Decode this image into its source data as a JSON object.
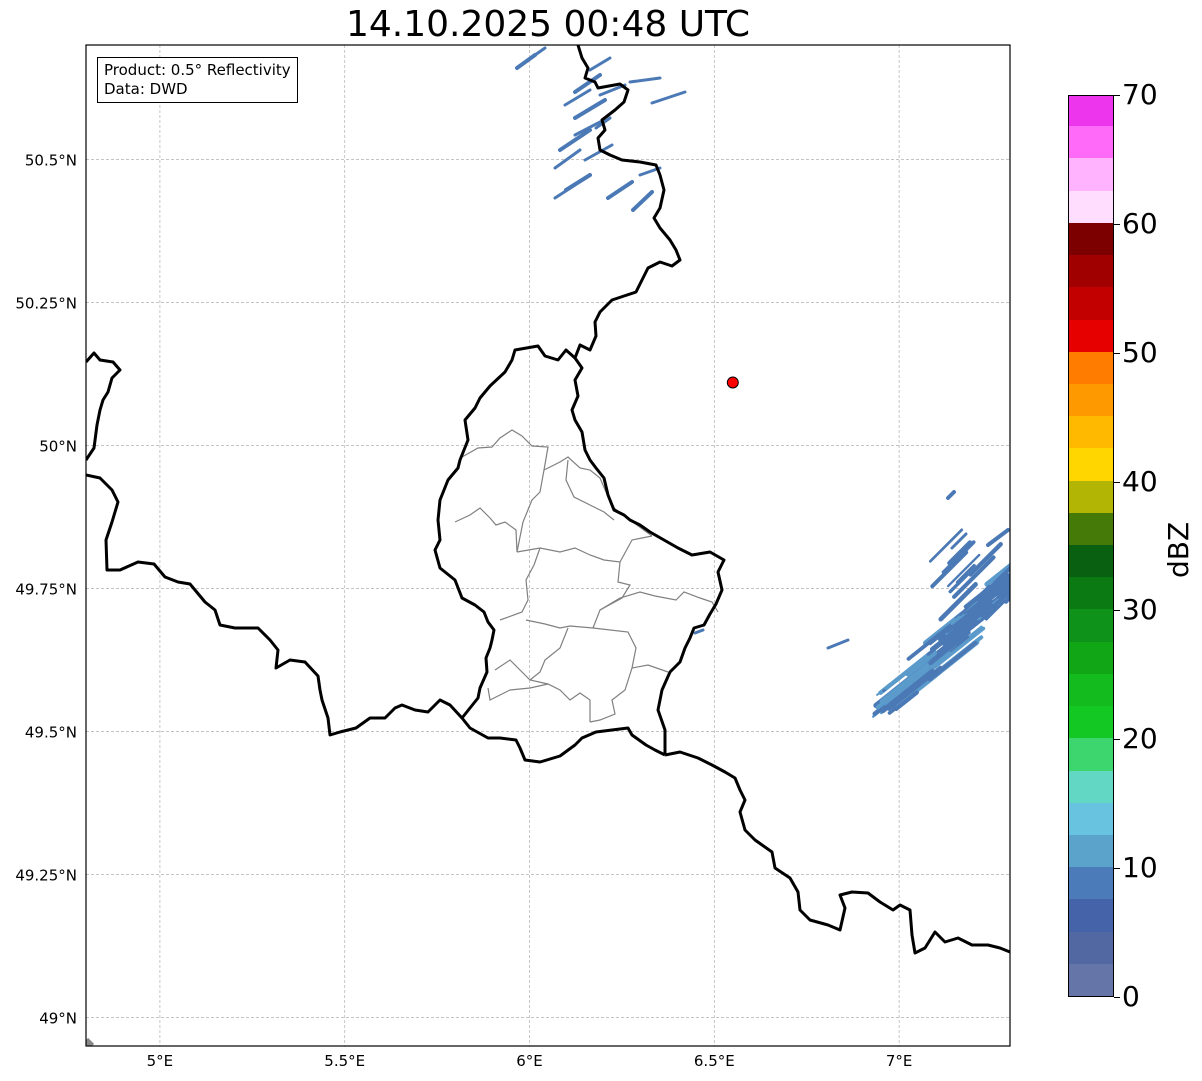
{
  "title": "14.10.2025 00:48 UTC",
  "infobox": {
    "product": "Product: 0.5° Reflectivity",
    "data_source": "Data: DWD"
  },
  "map_extent": {
    "lon_min": 4.8,
    "lon_max": 7.3,
    "lat_min": 48.95,
    "lat_max": 50.7
  },
  "lon_ticks": [
    {
      "value": 5.0,
      "label": "5°E"
    },
    {
      "value": 5.5,
      "label": "5.5°E"
    },
    {
      "value": 6.0,
      "label": "6°E"
    },
    {
      "value": 6.5,
      "label": "6.5°E"
    },
    {
      "value": 7.0,
      "label": "7°E"
    }
  ],
  "lat_ticks": [
    {
      "value": 50.5,
      "label": "50.5°N"
    },
    {
      "value": 50.25,
      "label": "50.25°N"
    },
    {
      "value": 50.0,
      "label": "50°N"
    },
    {
      "value": 49.75,
      "label": "49.75°N"
    },
    {
      "value": 49.5,
      "label": "49.5°N"
    },
    {
      "value": 49.25,
      "label": "49.25°N"
    },
    {
      "value": 49.0,
      "label": "49°N"
    }
  ],
  "radar_site": {
    "lon": 6.55,
    "lat": 50.11,
    "color": "#ff0000"
  },
  "colorbar": {
    "label": "dBZ",
    "min": 0,
    "max": 70,
    "step": 2.5,
    "ticks": [
      0,
      10,
      20,
      30,
      40,
      50,
      60,
      70
    ],
    "colors": [
      "#6575a8",
      "#5268a3",
      "#4463a8",
      "#4b7bb8",
      "#5ba3cb",
      "#68c3e0",
      "#62d7c4",
      "#3dd66e",
      "#14c823",
      "#14bb1e",
      "#11a616",
      "#0f921a",
      "#0c7a13",
      "#096010",
      "#457a08",
      "#b2b504",
      "#ffd600",
      "#ffba00",
      "#ff9900",
      "#ff7c00",
      "#e60000",
      "#c30000",
      "#a10000",
      "#7c0000",
      "#ffddff",
      "#ffb3ff",
      "#ff6bf8",
      "#ee35ee"
    ]
  },
  "precip_color": "#4b79b5",
  "precip_color_light": "#5b9bcb"
}
